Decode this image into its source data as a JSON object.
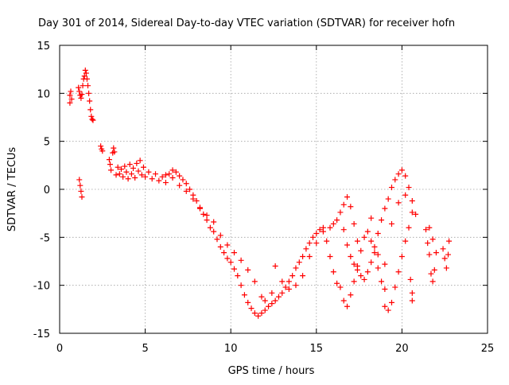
{
  "chart_data": {
    "type": "scatter",
    "title": "Day 301 of 2014, Sidereal Day-to-day VTEC variation (SDTVAR) for receiver hofn",
    "xlabel": "GPS time / hours",
    "ylabel": "SDTVAR / TECUs",
    "xlim": [
      0,
      25
    ],
    "ylim": [
      -15,
      15
    ],
    "xticks": [
      "0",
      "5",
      "10",
      "15",
      "20",
      "25"
    ],
    "yticks": [
      "-15",
      "-10",
      "-5",
      "0",
      "5",
      "10",
      "15"
    ],
    "grid": true,
    "marker": "+",
    "series_color": "#ff0000",
    "series": [
      {
        "name": "SDTVAR",
        "points": [
          [
            0.6,
            9.0
          ],
          [
            0.6,
            9.8
          ],
          [
            0.65,
            10.2
          ],
          [
            0.7,
            9.4
          ],
          [
            1.1,
            10.6
          ],
          [
            1.15,
            10.2
          ],
          [
            1.2,
            9.8
          ],
          [
            1.25,
            9.5
          ],
          [
            1.3,
            9.9
          ],
          [
            1.35,
            10.8
          ],
          [
            1.4,
            11.5
          ],
          [
            1.45,
            11.8
          ],
          [
            1.5,
            12.4
          ],
          [
            1.55,
            12.1
          ],
          [
            1.6,
            11.5
          ],
          [
            1.65,
            10.8
          ],
          [
            1.7,
            10.0
          ],
          [
            1.75,
            9.2
          ],
          [
            1.8,
            8.3
          ],
          [
            1.85,
            7.6
          ],
          [
            1.9,
            7.3
          ],
          [
            1.95,
            7.2
          ],
          [
            1.15,
            1.0
          ],
          [
            1.2,
            0.4
          ],
          [
            1.25,
            -0.2
          ],
          [
            1.3,
            -0.8
          ],
          [
            2.4,
            4.5
          ],
          [
            2.45,
            4.2
          ],
          [
            2.5,
            4.0
          ],
          [
            2.9,
            3.1
          ],
          [
            2.95,
            2.6
          ],
          [
            3.0,
            2.0
          ],
          [
            3.1,
            3.8
          ],
          [
            3.15,
            4.3
          ],
          [
            3.2,
            3.9
          ],
          [
            3.3,
            1.5
          ],
          [
            3.4,
            2.3
          ],
          [
            3.5,
            1.6
          ],
          [
            3.6,
            2.1
          ],
          [
            3.7,
            1.3
          ],
          [
            3.8,
            2.4
          ],
          [
            3.9,
            1.8
          ],
          [
            4.0,
            1.1
          ],
          [
            4.1,
            2.6
          ],
          [
            4.2,
            1.6
          ],
          [
            4.3,
            2.2
          ],
          [
            4.4,
            1.2
          ],
          [
            4.5,
            2.7
          ],
          [
            4.6,
            1.9
          ],
          [
            4.7,
            3.0
          ],
          [
            4.8,
            1.5
          ],
          [
            4.9,
            2.3
          ],
          [
            5.0,
            1.3
          ],
          [
            5.2,
            1.8
          ],
          [
            5.4,
            1.1
          ],
          [
            5.6,
            1.6
          ],
          [
            5.8,
            0.9
          ],
          [
            6.0,
            1.3
          ],
          [
            6.2,
            0.7
          ],
          [
            6.4,
            1.6
          ],
          [
            6.6,
            2.0
          ],
          [
            6.8,
            1.8
          ],
          [
            7.0,
            1.4
          ],
          [
            7.2,
            1.0
          ],
          [
            7.4,
            0.6
          ],
          [
            7.6,
            0.0
          ],
          [
            7.8,
            -0.6
          ],
          [
            8.0,
            -1.2
          ],
          [
            8.2,
            -1.9
          ],
          [
            8.4,
            -2.6
          ],
          [
            8.6,
            -3.2
          ],
          [
            8.8,
            -4.0
          ],
          [
            9.0,
            -4.4
          ],
          [
            9.2,
            -5.2
          ],
          [
            9.4,
            -6.0
          ],
          [
            9.6,
            -6.6
          ],
          [
            9.8,
            -7.2
          ],
          [
            10.0,
            -7.6
          ],
          [
            10.2,
            -8.3
          ],
          [
            10.4,
            -9.0
          ],
          [
            10.6,
            -10.0
          ],
          [
            10.8,
            -11.0
          ],
          [
            11.0,
            -11.8
          ],
          [
            11.2,
            -12.4
          ],
          [
            11.4,
            -12.9
          ],
          [
            11.6,
            -13.2
          ],
          [
            11.8,
            -12.9
          ],
          [
            12.0,
            -12.6
          ],
          [
            12.2,
            -12.2
          ],
          [
            12.4,
            -11.9
          ],
          [
            12.6,
            -11.6
          ],
          [
            12.8,
            -11.2
          ],
          [
            13.0,
            -10.8
          ],
          [
            13.2,
            -10.2
          ],
          [
            13.4,
            -9.6
          ],
          [
            13.6,
            -9.0
          ],
          [
            13.8,
            -8.2
          ],
          [
            14.0,
            -7.6
          ],
          [
            14.2,
            -7.0
          ],
          [
            14.4,
            -6.2
          ],
          [
            14.6,
            -5.6
          ],
          [
            14.8,
            -5.0
          ],
          [
            15.0,
            -4.6
          ],
          [
            15.2,
            -4.2
          ],
          [
            15.4,
            -4.0
          ],
          [
            6.2,
            1.5
          ],
          [
            6.6,
            1.2
          ],
          [
            7.0,
            0.4
          ],
          [
            7.4,
            -0.2
          ],
          [
            7.8,
            -1.0
          ],
          [
            8.2,
            -2.0
          ],
          [
            8.6,
            -2.7
          ],
          [
            9.0,
            -3.4
          ],
          [
            9.4,
            -4.8
          ],
          [
            9.8,
            -5.8
          ],
          [
            10.2,
            -6.6
          ],
          [
            10.6,
            -7.4
          ],
          [
            11.0,
            -8.4
          ],
          [
            11.4,
            -9.6
          ],
          [
            11.8,
            -11.2
          ],
          [
            12.0,
            -11.6
          ],
          [
            12.4,
            -10.8
          ],
          [
            12.6,
            -8.0
          ],
          [
            13.0,
            -9.6
          ],
          [
            13.4,
            -10.4
          ],
          [
            13.8,
            -10.0
          ],
          [
            14.2,
            -9.0
          ],
          [
            14.6,
            -7.0
          ],
          [
            15.0,
            -5.6
          ],
          [
            15.4,
            -4.4
          ],
          [
            15.8,
            -4.0
          ],
          [
            16.0,
            -3.6
          ],
          [
            16.2,
            -3.2
          ],
          [
            16.4,
            -2.4
          ],
          [
            16.6,
            -1.6
          ],
          [
            16.8,
            -0.8
          ],
          [
            17.0,
            -1.8
          ],
          [
            17.2,
            -3.6
          ],
          [
            17.4,
            -5.4
          ],
          [
            15.6,
            -5.4
          ],
          [
            15.8,
            -7.0
          ],
          [
            16.0,
            -8.6
          ],
          [
            16.2,
            -9.8
          ],
          [
            16.4,
            -10.2
          ],
          [
            16.6,
            -11.6
          ],
          [
            16.8,
            -12.2
          ],
          [
            17.0,
            -11.0
          ],
          [
            17.2,
            -9.6
          ],
          [
            17.4,
            -8.0
          ],
          [
            17.6,
            -6.4
          ],
          [
            17.8,
            -5.0
          ],
          [
            18.0,
            -4.4
          ],
          [
            18.2,
            -5.4
          ],
          [
            18.4,
            -6.6
          ],
          [
            18.6,
            -8.2
          ],
          [
            18.8,
            -9.6
          ],
          [
            19.0,
            -10.4
          ],
          [
            16.6,
            -4.2
          ],
          [
            16.8,
            -5.8
          ],
          [
            17.0,
            -7.0
          ],
          [
            17.2,
            -7.8
          ],
          [
            17.4,
            -8.4
          ],
          [
            17.6,
            -9.0
          ],
          [
            17.8,
            -9.4
          ],
          [
            18.0,
            -8.6
          ],
          [
            18.2,
            -7.6
          ],
          [
            18.4,
            -6.0
          ],
          [
            18.6,
            -4.6
          ],
          [
            18.8,
            -3.2
          ],
          [
            19.0,
            -2.0
          ],
          [
            19.2,
            -1.0
          ],
          [
            19.4,
            0.2
          ],
          [
            19.6,
            1.0
          ],
          [
            19.8,
            1.6
          ],
          [
            20.0,
            2.0
          ],
          [
            20.2,
            1.4
          ],
          [
            20.4,
            0.2
          ],
          [
            20.6,
            -1.2
          ],
          [
            20.8,
            -2.6
          ],
          [
            19.0,
            -12.2
          ],
          [
            19.2,
            -12.6
          ],
          [
            19.4,
            -11.8
          ],
          [
            19.6,
            -10.2
          ],
          [
            19.8,
            -8.6
          ],
          [
            20.0,
            -7.0
          ],
          [
            20.2,
            -5.4
          ],
          [
            20.4,
            -4.0
          ],
          [
            20.6,
            -2.4
          ],
          [
            18.2,
            -3.0
          ],
          [
            18.6,
            -6.8
          ],
          [
            19.0,
            -7.8
          ],
          [
            19.4,
            -3.6
          ],
          [
            19.8,
            -1.4
          ],
          [
            20.2,
            -0.6
          ],
          [
            20.5,
            -9.4
          ],
          [
            20.6,
            -10.8
          ],
          [
            20.6,
            -11.6
          ],
          [
            21.4,
            -4.2
          ],
          [
            21.5,
            -5.6
          ],
          [
            21.6,
            -6.8
          ],
          [
            21.7,
            -8.8
          ],
          [
            21.8,
            -9.6
          ],
          [
            21.9,
            -8.4
          ],
          [
            21.6,
            -4.0
          ],
          [
            21.8,
            -5.2
          ],
          [
            22.0,
            -6.6
          ],
          [
            22.4,
            -6.2
          ],
          [
            22.5,
            -7.2
          ],
          [
            22.6,
            -8.2
          ],
          [
            22.7,
            -6.8
          ],
          [
            22.75,
            -5.4
          ]
        ]
      }
    ]
  }
}
